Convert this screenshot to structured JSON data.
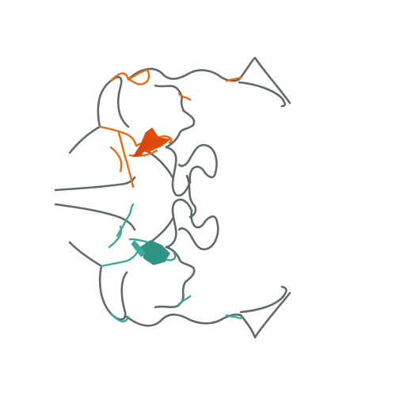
{
  "image": {
    "description_type": "protein-ribbon-render",
    "background_color": "#ffffff",
    "colors": {
      "backbone": "#5f6b6b",
      "chain_a_highlight": "#e8690f",
      "chain_a_sheet": "#e04a0b",
      "chain_b_highlight": "#3aa899",
      "chain_b_sheet": "#2f9484"
    }
  }
}
